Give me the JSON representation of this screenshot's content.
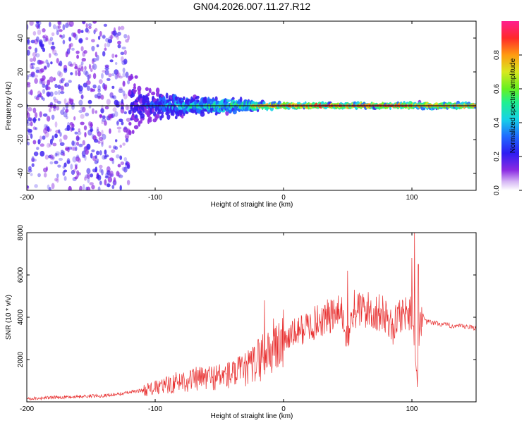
{
  "figure": {
    "title": "GN04.2026.007.11.27.R12"
  },
  "colors": {
    "snr_line": "#e83030",
    "carrier_line": "#111111",
    "frame": "#000000",
    "colormap": [
      "#ffffff",
      "#8a2be2",
      "#3a1df0",
      "#1f6bff",
      "#16d2e6",
      "#20f090",
      "#66f020",
      "#d8e81e",
      "#ff9b12",
      "#ff2a2a",
      "#ff1f8f"
    ]
  },
  "chart_data": [
    {
      "type": "heatmap",
      "name": "spectrogram",
      "title": "GN04.2026.007.11.27.R12",
      "xlabel": "Height of straight line (km)",
      "ylabel": "Frequency (Hz)",
      "xlim": [
        -200,
        150
      ],
      "ylim": [
        -50,
        50
      ],
      "xticks": [
        -200,
        -100,
        0,
        100
      ],
      "xtick_labels": [
        "-200",
        "-100",
        "0",
        "100"
      ],
      "yticks": [
        -40,
        -20,
        0,
        20,
        40
      ],
      "ytick_labels": [
        "-40",
        "-20",
        "0",
        "20",
        "40"
      ],
      "carrier_frequency_hz": 0,
      "colorbar": {
        "label": "Normalized spectral amplitude",
        "range": [
          0.0,
          1.0
        ],
        "ticks": [
          0.0,
          0.2,
          0.4,
          0.6,
          0.8
        ],
        "tick_labels": [
          "0.0",
          "0.2",
          "0.4",
          "0.6",
          "0.8"
        ]
      },
      "description_series": [
        {
          "name": "signal_spread_hz_vs_height",
          "x": [
            -200,
            -130,
            -110,
            -90,
            -70,
            -50,
            -35,
            -20,
            0,
            50,
            100,
            150
          ],
          "spread": [
            50,
            50,
            12,
            10,
            7,
            6,
            5,
            3,
            1.5,
            1.5,
            2,
            1.5
          ]
        },
        {
          "name": "peak_amplitude_vs_height",
          "x": [
            -200,
            -130,
            -110,
            -90,
            -70,
            -50,
            -35,
            -20,
            0,
            50,
            100,
            150
          ],
          "amplitude": [
            0.1,
            0.15,
            0.25,
            0.4,
            0.5,
            0.55,
            0.6,
            0.8,
            0.9,
            0.9,
            0.85,
            0.8
          ]
        }
      ]
    },
    {
      "type": "line",
      "name": "snr",
      "xlabel": "Height of straight line (km)",
      "ylabel": "SNR (10 * v/v)",
      "xlim": [
        -200,
        150
      ],
      "ylim": [
        0,
        8000
      ],
      "xticks": [
        -200,
        -100,
        0,
        100
      ],
      "xtick_labels": [
        "-200",
        "-100",
        "0",
        "100"
      ],
      "yticks": [
        2000,
        4000,
        6000,
        8000
      ],
      "ytick_labels": [
        "2000",
        "4000",
        "6000",
        "8000"
      ],
      "series": [
        {
          "name": "SNR",
          "x": [
            -200,
            -180,
            -160,
            -140,
            -130,
            -120,
            -110,
            -100,
            -90,
            -80,
            -70,
            -60,
            -50,
            -40,
            -30,
            -25,
            -20,
            -15,
            -10,
            -5,
            0,
            10,
            20,
            30,
            40,
            45,
            48,
            50,
            52,
            55,
            60,
            70,
            80,
            85,
            90,
            95,
            100,
            102,
            104,
            106,
            108,
            110,
            120,
            130,
            140,
            150
          ],
          "y": [
            150,
            200,
            250,
            300,
            350,
            450,
            550,
            650,
            800,
            1000,
            1050,
            1150,
            1200,
            1300,
            1500,
            1700,
            2000,
            2300,
            2500,
            2700,
            2900,
            3300,
            3600,
            3900,
            4100,
            4200,
            3600,
            2600,
            3800,
            4200,
            4400,
            4250,
            4100,
            3400,
            4150,
            4200,
            4350,
            3000,
            1200,
            3500,
            4200,
            3800,
            3700,
            3600,
            3550,
            3500
          ]
        },
        {
          "name": "SNR_spikes",
          "x": [
            -15,
            50,
            55,
            100,
            102,
            104,
            105
          ],
          "y": [
            4800,
            6200,
            5300,
            6800,
            8000,
            700,
            6500
          ]
        }
      ]
    }
  ]
}
